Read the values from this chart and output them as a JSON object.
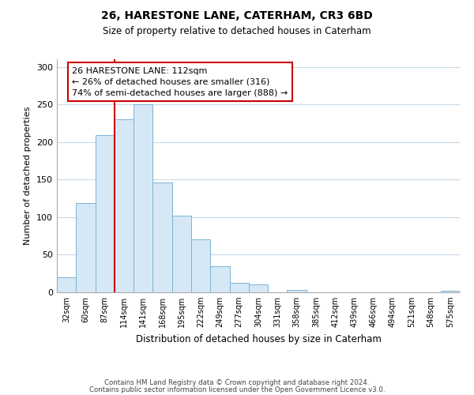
{
  "title": "26, HARESTONE LANE, CATERHAM, CR3 6BD",
  "subtitle": "Size of property relative to detached houses in Caterham",
  "xlabel": "Distribution of detached houses by size in Caterham",
  "ylabel": "Number of detached properties",
  "bar_labels": [
    "32sqm",
    "60sqm",
    "87sqm",
    "114sqm",
    "141sqm",
    "168sqm",
    "195sqm",
    "222sqm",
    "249sqm",
    "277sqm",
    "304sqm",
    "331sqm",
    "358sqm",
    "385sqm",
    "412sqm",
    "439sqm",
    "466sqm",
    "494sqm",
    "521sqm",
    "548sqm",
    "575sqm"
  ],
  "bar_values": [
    20,
    119,
    209,
    230,
    250,
    146,
    102,
    70,
    35,
    13,
    10,
    0,
    3,
    0,
    0,
    0,
    0,
    0,
    0,
    0,
    2
  ],
  "bar_color": "#d6e8f5",
  "bar_edge_color": "#7ab4d4",
  "vline_color": "#cc0000",
  "vline_x_idx": 2.5,
  "annotation_title": "26 HARESTONE LANE: 112sqm",
  "annotation_line1": "← 26% of detached houses are smaller (316)",
  "annotation_line2": "74% of semi-detached houses are larger (888) →",
  "yticks": [
    0,
    50,
    100,
    150,
    200,
    250,
    300
  ],
  "ylim": [
    0,
    310
  ],
  "grid_color": "#c8dae8",
  "footer1": "Contains HM Land Registry data © Crown copyright and database right 2024.",
  "footer2": "Contains public sector information licensed under the Open Government Licence v3.0."
}
